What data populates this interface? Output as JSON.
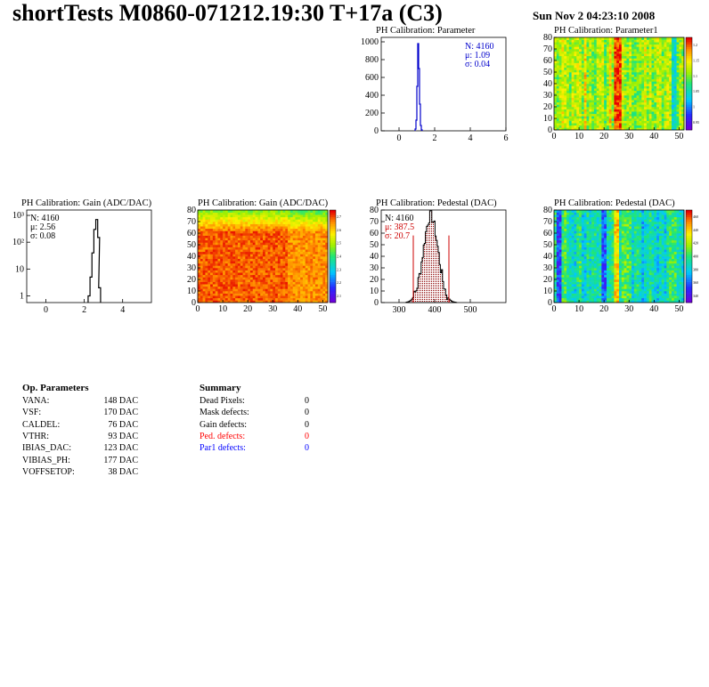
{
  "header": {
    "title": "shortTests M0860-071212.19:30 T+17a (C3)",
    "date": "Sun Nov  2 04:23:10 2008"
  },
  "colors": {
    "stat_blue": "#0000cc",
    "stat_red": "#cc0000",
    "hist_line": "#000000",
    "ped_fill": "#8b0000"
  },
  "op_parameters": {
    "title": "Op. Parameters",
    "rows": [
      {
        "name": "VANA:",
        "value": "148 DAC"
      },
      {
        "name": "VSF:",
        "value": "170 DAC"
      },
      {
        "name": "CALDEL:",
        "value": "76 DAC"
      },
      {
        "name": "VTHR:",
        "value": "93 DAC"
      },
      {
        "name": "IBIAS_DAC:",
        "value": "123 DAC"
      },
      {
        "name": "VIBIAS_PH:",
        "value": "177 DAC"
      },
      {
        "name": "VOFFSETOP:",
        "value": "38 DAC"
      }
    ]
  },
  "summary": {
    "title": "Summary",
    "rows": [
      {
        "name": "Dead Pixels:",
        "value": "0",
        "color": "#000000"
      },
      {
        "name": "Mask defects:",
        "value": "0",
        "color": "#000000"
      },
      {
        "name": "Gain defects:",
        "value": "0",
        "color": "#000000"
      },
      {
        "name": "Ped. defects:",
        "value": "0",
        "color": "#ff0000"
      },
      {
        "name": "Par1 defects:",
        "value": "0",
        "color": "#0000ff"
      }
    ]
  },
  "chart_data": [
    {
      "id": "param-hist",
      "type": "histogram",
      "title": "PH Calibration: Parameter",
      "xlim": [
        -1,
        6
      ],
      "ylim": [
        0,
        1050
      ],
      "xticks": [
        "0",
        "2",
        "4",
        "6"
      ],
      "yticks": [
        "0",
        "200",
        "400",
        "600",
        "800",
        "1000"
      ],
      "series": [
        {
          "bins_x": [
            0.9,
            0.95,
            1.0,
            1.05,
            1.1,
            1.15,
            1.2,
            1.25
          ],
          "values": [
            20,
            120,
            500,
            980,
            700,
            300,
            60,
            10
          ]
        }
      ],
      "stats": {
        "entries": "N: 4160",
        "mean": "μ: 1.09",
        "sigma": "σ: 0.04",
        "color": "#0000cc"
      }
    },
    {
      "id": "param-map",
      "type": "heatmap",
      "title": "PH Calibration: Parameter1",
      "xlim": [
        0,
        52
      ],
      "ylim": [
        0,
        80
      ],
      "xticks": [
        "0",
        "10",
        "20",
        "30",
        "40",
        "50"
      ],
      "yticks": [
        "0",
        "10",
        "20",
        "30",
        "40",
        "50",
        "60",
        "70",
        "80"
      ],
      "palette_ticks": [
        "0.95",
        "1",
        "1.05",
        "1.1",
        "1.15",
        "1.2"
      ]
    },
    {
      "id": "gain-hist",
      "type": "histogram",
      "title": "PH Calibration: Gain (ADC/DAC)",
      "log_y": true,
      "xlim": [
        -1,
        5.5
      ],
      "xticks": [
        "0",
        "2",
        "4"
      ],
      "yticks": [
        "1",
        "10",
        "10²",
        "10³"
      ],
      "series": [
        {
          "bins_x": [
            2.2,
            2.3,
            2.4,
            2.5,
            2.6,
            2.7,
            2.75
          ],
          "values": [
            1,
            5,
            40,
            300,
            700,
            150,
            2
          ]
        }
      ],
      "stats": {
        "entries": "N: 4160",
        "mean": "μ: 2.56",
        "sigma": "σ: 0.08",
        "color": "#000000"
      }
    },
    {
      "id": "gain-map",
      "type": "heatmap",
      "title": "PH Calibration: Gain (ADC/DAC)",
      "xlim": [
        0,
        52
      ],
      "ylim": [
        0,
        80
      ],
      "xticks": [
        "0",
        "10",
        "20",
        "30",
        "40",
        "50"
      ],
      "yticks": [
        "0",
        "10",
        "20",
        "30",
        "40",
        "50",
        "60",
        "70",
        "80"
      ],
      "palette_ticks": [
        "2.1",
        "2.2",
        "2.3",
        "2.4",
        "2.5",
        "2.6",
        "2.7"
      ]
    },
    {
      "id": "ped-hist",
      "type": "histogram",
      "title": "PH Calibration: Pedestal (DAC)",
      "xlim": [
        250,
        600
      ],
      "ylim": [
        0,
        80
      ],
      "xticks": [
        "300",
        "400",
        "500"
      ],
      "yticks": [
        "0",
        "10",
        "20",
        "30",
        "40",
        "50",
        "60",
        "70",
        "80"
      ],
      "series": [
        {
          "mean": 387.5,
          "sigma": 20.7,
          "peak": 75
        }
      ],
      "cut_lines": [
        340,
        440
      ],
      "stats": {
        "entries": "N: 4160",
        "mean": "μ: 387.5",
        "sigma": "σ: 20.7",
        "color": "#cc0000"
      }
    },
    {
      "id": "ped-map",
      "type": "heatmap",
      "title": "PH Calibration: Pedestal (DAC)",
      "xlim": [
        0,
        52
      ],
      "ylim": [
        0,
        80
      ],
      "xticks": [
        "0",
        "10",
        "20",
        "30",
        "40",
        "50"
      ],
      "yticks": [
        "0",
        "10",
        "20",
        "30",
        "40",
        "50",
        "60",
        "70",
        "80"
      ],
      "palette_ticks": [
        "340",
        "360",
        "380",
        "400",
        "420",
        "440",
        "460"
      ]
    }
  ]
}
